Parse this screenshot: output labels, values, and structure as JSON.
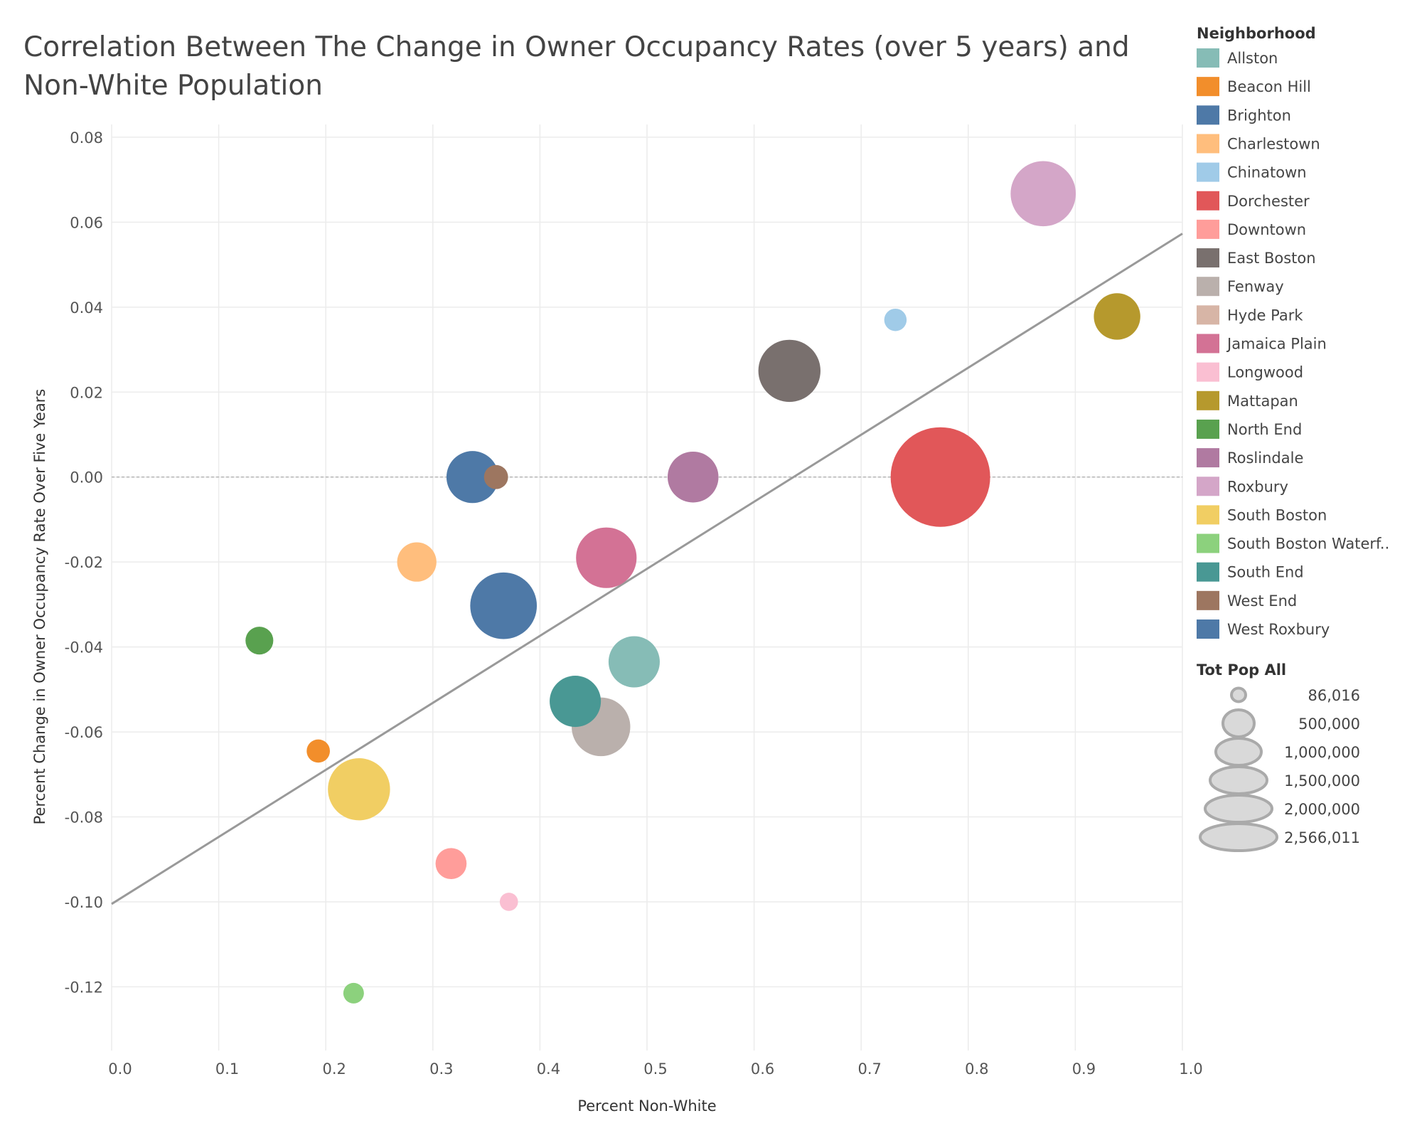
{
  "chart_data": {
    "type": "scatter",
    "title": "Correlation Between The Change in Owner Occupancy Rates (over 5 years) and Non-White Population",
    "xlabel": "Percent Non-White",
    "ylabel": "Percent Change in Owner Occupancy Rate Over Five Years",
    "xlim": [
      0.0,
      1.0
    ],
    "ylim": [
      -0.135,
      0.083
    ],
    "x_ticks": [
      "0.0",
      "0.1",
      "0.2",
      "0.3",
      "0.4",
      "0.5",
      "0.6",
      "0.7",
      "0.8",
      "0.9",
      "1.0"
    ],
    "y_ticks": [
      "0.08",
      "0.06",
      "0.04",
      "0.02",
      "0.00",
      "-0.02",
      "-0.04",
      "-0.06",
      "-0.08",
      "-0.10",
      "-0.12"
    ],
    "y_tick_values": [
      0.08,
      0.06,
      0.04,
      0.02,
      0.0,
      -0.02,
      -0.04,
      -0.06,
      -0.08,
      -0.1,
      -0.12
    ],
    "grid": true,
    "trend_line": {
      "x": [
        0.0,
        1.0
      ],
      "y": [
        -0.1005,
        0.0573
      ],
      "color": "#999999"
    },
    "legend_position": "right",
    "color_legend_title": "Neighborhood",
    "size_legend_title": "Tot Pop All",
    "size_legend": [
      {
        "label": "86,016",
        "value": 86016
      },
      {
        "label": "500,000",
        "value": 500000
      },
      {
        "label": "1,000,000",
        "value": 1000000
      },
      {
        "label": "1,500,000",
        "value": 1500000
      },
      {
        "label": "2,000,000",
        "value": 2000000
      },
      {
        "label": "2,566,011",
        "value": 2566011
      }
    ],
    "series": [
      {
        "name": "Allston",
        "legend_label": "Allston",
        "color": "#86bcb6",
        "x": 0.488,
        "y": -0.0435,
        "pop": 680000
      },
      {
        "name": "Beacon Hill",
        "legend_label": "Beacon Hill",
        "color": "#f28e2b",
        "x": 0.193,
        "y": -0.0645,
        "pop": 140000
      },
      {
        "name": "Brighton",
        "legend_label": "Brighton",
        "color": "#4e79a7",
        "x": 0.337,
        "y": 0.0,
        "pop": 700000
      },
      {
        "name": "Charlestown",
        "legend_label": "Charlestown",
        "color": "#ffbe7d",
        "x": 0.285,
        "y": -0.02,
        "pop": 400000
      },
      {
        "name": "Chinatown",
        "legend_label": "Chinatown",
        "color": "#a0cbe8",
        "x": 0.732,
        "y": 0.037,
        "pop": 130000
      },
      {
        "name": "Dorchester",
        "legend_label": "Dorchester",
        "color": "#e15759",
        "x": 0.774,
        "y": 0.0,
        "pop": 2566011
      },
      {
        "name": "Downtown",
        "legend_label": "Downtown",
        "color": "#ff9d9a",
        "x": 0.317,
        "y": -0.091,
        "pop": 250000
      },
      {
        "name": "East Boston",
        "legend_label": "East Boston",
        "color": "#79706e",
        "x": 0.633,
        "y": 0.025,
        "pop": 1000000
      },
      {
        "name": "Fenway",
        "legend_label": "Fenway",
        "color": "#bab0ac",
        "x": 0.457,
        "y": -0.0588,
        "pop": 890000
      },
      {
        "name": "Hyde Park",
        "legend_label": "Hyde Park",
        "color": "#d7b5a6",
        "x": null,
        "y": null,
        "pop": null
      },
      {
        "name": "Jamaica Plain",
        "legend_label": "Jamaica Plain",
        "color": "#d37295",
        "x": 0.462,
        "y": -0.019,
        "pop": 950000
      },
      {
        "name": "Longwood",
        "legend_label": "Longwood",
        "color": "#fabfd2",
        "x": 0.371,
        "y": -0.1,
        "pop": 86016
      },
      {
        "name": "Mattapan",
        "legend_label": "Mattapan",
        "color": "#b6992d",
        "x": 0.939,
        "y": 0.0378,
        "pop": 560000
      },
      {
        "name": "North End",
        "legend_label": "North End",
        "color": "#59a14f",
        "x": 0.138,
        "y": -0.0385,
        "pop": 200000
      },
      {
        "name": "Roslindale",
        "legend_label": "Roslindale",
        "color": "#b07aa1",
        "x": 0.543,
        "y": 0.0,
        "pop": 670000
      },
      {
        "name": "Roxbury",
        "legend_label": "Roxbury",
        "color": "#d4a6c8",
        "x": 0.87,
        "y": 0.0667,
        "pop": 1100000
      },
      {
        "name": "South Boston",
        "legend_label": "South Boston",
        "color": "#f1ce63",
        "x": 0.231,
        "y": -0.0735,
        "pop": 1000000
      },
      {
        "name": "South Boston Waterfront",
        "legend_label": "South Boston Waterf..",
        "color": "#8cd17d",
        "x": 0.226,
        "y": -0.1215,
        "pop": 110000
      },
      {
        "name": "South End",
        "legend_label": "South End",
        "color": "#499894",
        "x": 0.433,
        "y": -0.0528,
        "pop": 680000
      },
      {
        "name": "West End",
        "legend_label": "West End",
        "color": "#9d7660",
        "x": 0.359,
        "y": 0.0,
        "pop": 150000
      },
      {
        "name": "West Roxbury",
        "legend_label": "West Roxbury",
        "color": "#4e79a7",
        "x": 0.366,
        "y": -0.0303,
        "pop": 1150000
      }
    ]
  }
}
